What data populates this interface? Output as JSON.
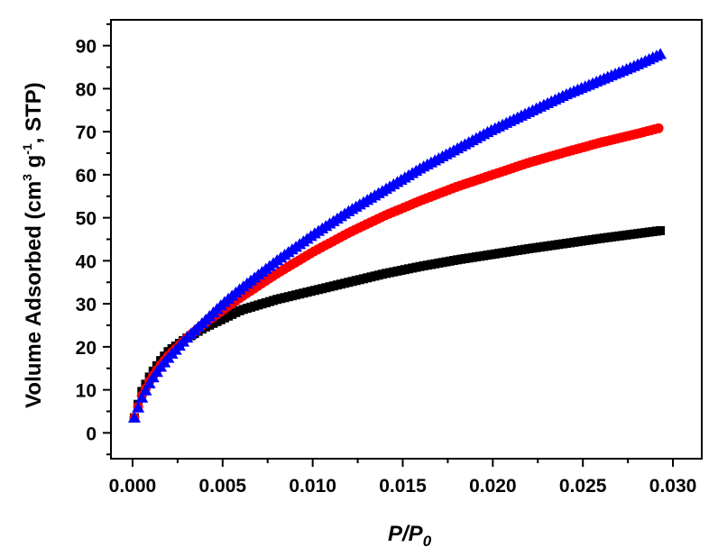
{
  "chart_data": {
    "type": "scatter",
    "xlabel": "P/P0",
    "xlabel_main": "P/P",
    "xlabel_sub": "0",
    "ylabel_parts": {
      "a": "Volume Adsorbed (cm",
      "sup1": "3",
      "b": " g",
      "sup2": "-1",
      "c": ", STP)"
    },
    "xlim": [
      -0.0012,
      0.0316
    ],
    "ylim": [
      -6,
      96
    ],
    "x_ticks": [
      "0.000",
      "0.005",
      "0.010",
      "0.015",
      "0.020",
      "0.025",
      "0.030"
    ],
    "y_ticks": [
      "0",
      "10",
      "20",
      "30",
      "40",
      "50",
      "60",
      "70",
      "80",
      "90"
    ],
    "grid": false,
    "legend": "none",
    "series": [
      {
        "marker": "square",
        "color": "#000000",
        "x": [
          0.0001,
          0.0005,
          0.001,
          0.0015,
          0.002,
          0.003,
          0.004,
          0.005,
          0.006,
          0.008,
          0.01,
          0.012,
          0.014,
          0.016,
          0.018,
          0.02,
          0.022,
          0.024,
          0.026,
          0.028,
          0.0293
        ],
        "y": [
          3.5,
          9.5,
          13.5,
          16.5,
          19.0,
          22.0,
          24.5,
          26.5,
          28.5,
          31.0,
          33.0,
          35.0,
          37.0,
          38.7,
          40.2,
          41.5,
          42.8,
          44.0,
          45.2,
          46.3,
          47.0
        ]
      },
      {
        "marker": "circle",
        "color": "#ff0000",
        "x": [
          0.0001,
          0.0005,
          0.001,
          0.0015,
          0.002,
          0.003,
          0.004,
          0.005,
          0.006,
          0.008,
          0.01,
          0.012,
          0.014,
          0.016,
          0.018,
          0.02,
          0.022,
          0.024,
          0.026,
          0.028,
          0.0292
        ],
        "y": [
          3.5,
          8.5,
          12.5,
          15.5,
          18.0,
          22.0,
          25.5,
          28.5,
          31.5,
          37.0,
          42.0,
          46.5,
          50.5,
          54.0,
          57.2,
          60.0,
          62.8,
          65.2,
          67.5,
          69.5,
          70.8
        ]
      },
      {
        "marker": "triangle",
        "color": "#0000ff",
        "x": [
          0.0001,
          0.0005,
          0.001,
          0.0015,
          0.002,
          0.003,
          0.004,
          0.005,
          0.006,
          0.008,
          0.01,
          0.012,
          0.014,
          0.016,
          0.018,
          0.02,
          0.022,
          0.024,
          0.026,
          0.028,
          0.0293
        ],
        "y": [
          3.5,
          8.0,
          12.0,
          15.0,
          17.5,
          22.0,
          26.0,
          30.0,
          33.5,
          40.0,
          46.0,
          51.5,
          56.5,
          61.5,
          66.0,
          70.5,
          74.5,
          78.5,
          82.0,
          85.5,
          88.0
        ]
      }
    ]
  }
}
